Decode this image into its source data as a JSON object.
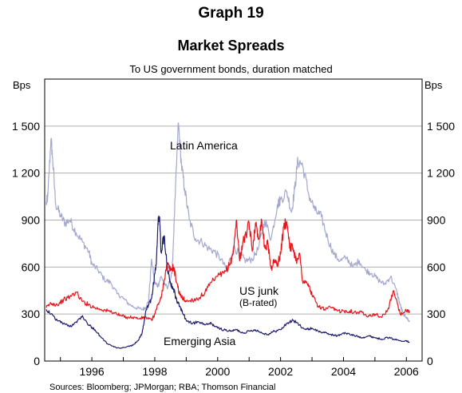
{
  "chart_data": {
    "type": "line",
    "graph_number": "Graph 19",
    "title": "Market Spreads",
    "subtitle": "To US government bonds, duration matched",
    "y_unit_left": "Bps",
    "y_unit_right": "Bps",
    "ylim": [
      0,
      1800
    ],
    "yticks": [
      {
        "value": 0,
        "label": "0"
      },
      {
        "value": 300,
        "label": "300"
      },
      {
        "value": 600,
        "label": "600"
      },
      {
        "value": 900,
        "label": "900"
      },
      {
        "value": 1200,
        "label": "1 200"
      },
      {
        "value": 1500,
        "label": "1 500"
      }
    ],
    "xlim": [
      1994.5,
      2006.5
    ],
    "xticks": [
      {
        "value": 1996,
        "label": "1996"
      },
      {
        "value": 1998,
        "label": "1998"
      },
      {
        "value": 2000,
        "label": "2000"
      },
      {
        "value": 2002,
        "label": "2002"
      },
      {
        "value": 2004,
        "label": "2004"
      },
      {
        "value": 2006,
        "label": "2006"
      }
    ],
    "grid": true,
    "source": "Sources: Bloomberg; JPMorgan; RBA; Thomson Financial",
    "colors": {
      "latin_america": "#a4a8cf",
      "us_junk": "#e8141b",
      "emerging_asia": "#1f1e6e",
      "grid": "#b0b0b0"
    },
    "annotations": {
      "latin_america": "Latin America",
      "us_junk_1": "US junk",
      "us_junk_2": "(B-rated)",
      "emerging_asia": "Emerging Asia"
    },
    "series": [
      {
        "key": "latin_america",
        "x": [
          1994.55,
          1994.6,
          1994.7,
          1994.75,
          1994.85,
          1995.0,
          1995.15,
          1995.3,
          1995.5,
          1995.7,
          1995.9,
          1996.0,
          1996.2,
          1996.4,
          1996.6,
          1996.8,
          1997.0,
          1997.2,
          1997.4,
          1997.6,
          1997.7,
          1997.8,
          1997.9,
          1998.0,
          1998.1,
          1998.2,
          1998.4,
          1998.55,
          1998.65,
          1998.75,
          1998.85,
          1998.95,
          1999.1,
          1999.3,
          1999.5,
          1999.7,
          1999.9,
          2000.1,
          2000.3,
          2000.5,
          2000.7,
          2000.9,
          2001.1,
          2001.3,
          2001.5,
          2001.7,
          2001.9,
          2002.0,
          2002.2,
          2002.35,
          2002.45,
          2002.55,
          2002.7,
          2002.9,
          2003.1,
          2003.3,
          2003.5,
          2003.7,
          2003.9,
          2004.1,
          2004.3,
          2004.5,
          2004.7,
          2004.9,
          2005.1,
          2005.3,
          2005.5,
          2005.7,
          2005.8,
          2005.9,
          2006.0,
          2006.1
        ],
        "values": [
          1000,
          1050,
          1420,
          1300,
          1000,
          930,
          880,
          900,
          820,
          760,
          700,
          620,
          580,
          520,
          500,
          430,
          400,
          360,
          340,
          330,
          340,
          380,
          650,
          500,
          480,
          540,
          460,
          560,
          1050,
          1520,
          1250,
          1100,
          900,
          780,
          760,
          720,
          700,
          650,
          580,
          730,
          680,
          640,
          650,
          720,
          900,
          780,
          1000,
          1030,
          1080,
          950,
          1100,
          1280,
          1250,
          1060,
          960,
          920,
          780,
          680,
          640,
          660,
          600,
          640,
          580,
          560,
          520,
          490,
          540,
          440,
          360,
          300,
          280,
          250
        ]
      },
      {
        "key": "us_junk",
        "x": [
          1994.55,
          1994.7,
          1994.9,
          1995.1,
          1995.3,
          1995.5,
          1995.7,
          1995.9,
          1996.1,
          1996.3,
          1996.5,
          1996.7,
          1996.9,
          1997.1,
          1997.3,
          1997.5,
          1997.7,
          1997.9,
          1998.0,
          1998.1,
          1998.2,
          1998.3,
          1998.4,
          1998.5,
          1998.6,
          1998.7,
          1998.8,
          1998.9,
          1999.0,
          1999.2,
          1999.4,
          1999.6,
          1999.8,
          2000.0,
          2000.2,
          2000.4,
          2000.5,
          2000.6,
          2000.7,
          2000.8,
          2000.9,
          2001.0,
          2001.1,
          2001.2,
          2001.3,
          2001.4,
          2001.5,
          2001.6,
          2001.7,
          2001.8,
          2001.9,
          2002.0,
          2002.1,
          2002.2,
          2002.3,
          2002.4,
          2002.5,
          2002.6,
          2002.7,
          2002.8,
          2002.9,
          2003.0,
          2003.2,
          2003.4,
          2003.6,
          2003.8,
          2004.0,
          2004.2,
          2004.4,
          2004.6,
          2004.8,
          2005.0,
          2005.2,
          2005.4,
          2005.6,
          2005.8,
          2006.0,
          2006.1
        ],
        "values": [
          340,
          370,
          360,
          390,
          410,
          440,
          380,
          360,
          340,
          330,
          320,
          310,
          290,
          280,
          280,
          270,
          280,
          260,
          300,
          360,
          400,
          520,
          620,
          580,
          600,
          500,
          420,
          400,
          380,
          390,
          400,
          440,
          500,
          540,
          560,
          620,
          700,
          900,
          640,
          760,
          800,
          880,
          700,
          880,
          780,
          900,
          720,
          750,
          590,
          640,
          620,
          680,
          860,
          890,
          730,
          720,
          640,
          690,
          510,
          500,
          480,
          420,
          350,
          330,
          340,
          320,
          320,
          320,
          310,
          310,
          290,
          300,
          280,
          320,
          450,
          300,
          320,
          310
        ]
      },
      {
        "key": "emerging_asia",
        "x": [
          1994.55,
          1994.7,
          1994.9,
          1995.1,
          1995.3,
          1995.5,
          1995.7,
          1995.9,
          1996.1,
          1996.3,
          1996.5,
          1996.7,
          1996.9,
          1997.1,
          1997.3,
          1997.5,
          1997.6,
          1997.7,
          1997.8,
          1997.9,
          1998.0,
          1998.05,
          1998.1,
          1998.15,
          1998.2,
          1998.3,
          1998.4,
          1998.5,
          1998.6,
          1998.7,
          1998.8,
          1998.9,
          1999.0,
          1999.2,
          1999.4,
          1999.6,
          1999.8,
          2000.0,
          2000.2,
          2000.4,
          2000.6,
          2000.8,
          2001.0,
          2001.2,
          2001.4,
          2001.6,
          2001.8,
          2002.0,
          2002.2,
          2002.4,
          2002.6,
          2002.8,
          2003.0,
          2003.2,
          2003.4,
          2003.6,
          2003.8,
          2004.0,
          2004.2,
          2004.4,
          2004.6,
          2004.8,
          2005.0,
          2005.2,
          2005.4,
          2005.6,
          2005.8,
          2006.0,
          2006.1
        ],
        "values": [
          330,
          300,
          260,
          240,
          220,
          250,
          290,
          230,
          200,
          150,
          110,
          90,
          80,
          90,
          100,
          140,
          180,
          300,
          360,
          400,
          560,
          620,
          880,
          920,
          700,
          800,
          600,
          500,
          460,
          380,
          350,
          300,
          260,
          240,
          250,
          230,
          240,
          210,
          200,
          190,
          200,
          180,
          190,
          200,
          180,
          170,
          190,
          200,
          240,
          260,
          230,
          200,
          210,
          190,
          180,
          170,
          160,
          180,
          170,
          160,
          150,
          160,
          150,
          140,
          150,
          140,
          130,
          130,
          120
        ]
      }
    ]
  }
}
